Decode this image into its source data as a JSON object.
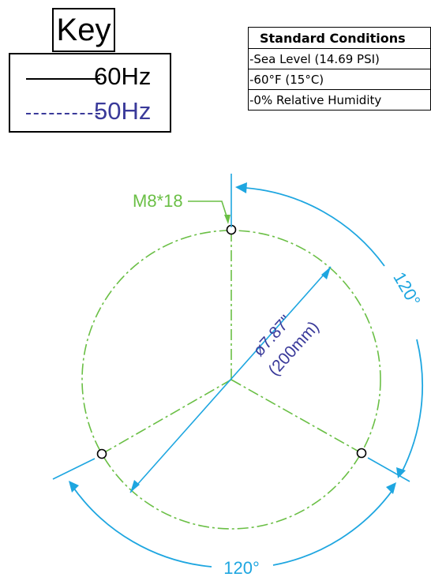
{
  "key": {
    "title": "Key",
    "entries": [
      {
        "label": "60Hz",
        "line_style": "solid",
        "color": "#000000"
      },
      {
        "label": "50Hz",
        "line_style": "dashed",
        "color": "#3a3a9a"
      }
    ]
  },
  "conditions": {
    "title": "Standard Conditions",
    "rows": [
      "-Sea Level  (14.69 PSI)",
      "-60°F  (15°C)",
      "-0% Relative Humidity"
    ]
  },
  "drawing": {
    "hole_label": "M8*18",
    "diameter_label": "ø7.87\"",
    "diameter_metric_label": "(200mm)",
    "angle_label_right": "120°",
    "angle_label_bottom": "120°",
    "colors": {
      "green": "#6abf45",
      "blue": "#1ea6e0",
      "navy": "#3a3a9a"
    }
  }
}
